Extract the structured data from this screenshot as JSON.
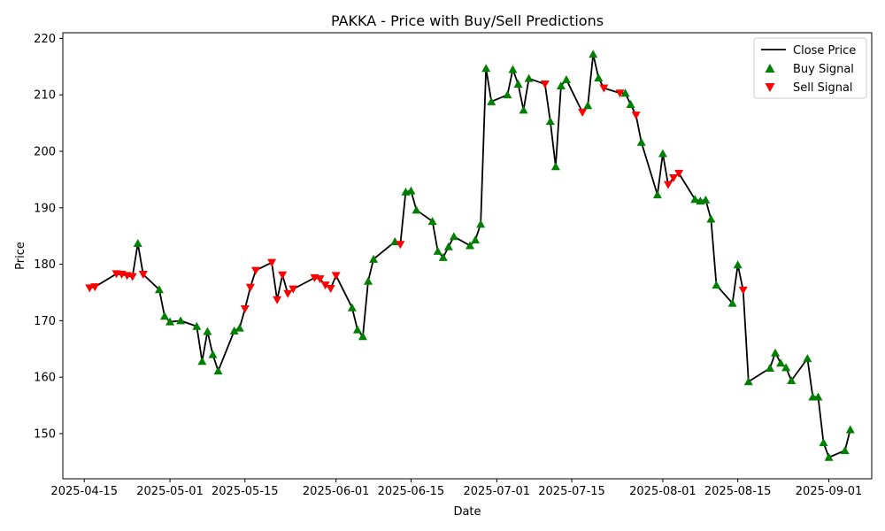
{
  "chart_data": {
    "type": "line",
    "title": "PAKKA - Price with Buy/Sell Predictions",
    "xlabel": "Date",
    "ylabel": "Price",
    "ylim": [
      142,
      221
    ],
    "xlim": [
      "2025-04-11",
      "2025-09-09"
    ],
    "x_ticks": [
      "2025-04-15",
      "2025-05-01",
      "2025-05-15",
      "2025-06-01",
      "2025-06-15",
      "2025-07-01",
      "2025-07-15",
      "2025-08-01",
      "2025-08-15",
      "2025-09-01"
    ],
    "y_ticks": [
      150,
      160,
      170,
      180,
      190,
      200,
      210,
      220
    ],
    "grid": false,
    "legend_position": "top-right",
    "legend": [
      "Close Price",
      "Buy Signal",
      "Sell Signal"
    ],
    "colors": {
      "close": "#000000",
      "buy": "#008000",
      "sell": "#ff0000"
    },
    "series": [
      {
        "name": "Close Price",
        "points": [
          [
            "2025-04-16",
            175.8
          ],
          [
            "2025-04-17",
            176.0
          ],
          [
            "2025-04-21",
            178.3
          ],
          [
            "2025-04-22",
            178.2
          ],
          [
            "2025-04-23",
            178.0
          ],
          [
            "2025-04-24",
            177.8
          ],
          [
            "2025-04-25",
            183.7
          ],
          [
            "2025-04-26",
            178.2
          ],
          [
            "2025-04-29",
            175.5
          ],
          [
            "2025-04-30",
            170.8
          ],
          [
            "2025-05-01",
            169.8
          ],
          [
            "2025-05-03",
            170.0
          ],
          [
            "2025-05-06",
            169.0
          ],
          [
            "2025-05-07",
            162.8
          ],
          [
            "2025-05-08",
            168.1
          ],
          [
            "2025-05-09",
            164.0
          ],
          [
            "2025-05-10",
            161.1
          ],
          [
            "2025-05-13",
            168.2
          ],
          [
            "2025-05-14",
            168.7
          ],
          [
            "2025-05-15",
            172.1
          ],
          [
            "2025-05-16",
            175.9
          ],
          [
            "2025-05-17",
            178.9
          ],
          [
            "2025-05-20",
            180.3
          ],
          [
            "2025-05-21",
            173.7
          ],
          [
            "2025-05-22",
            178.1
          ],
          [
            "2025-05-23",
            174.8
          ],
          [
            "2025-05-24",
            175.6
          ],
          [
            "2025-05-28",
            177.6
          ],
          [
            "2025-05-29",
            177.4
          ],
          [
            "2025-05-30",
            176.3
          ],
          [
            "2025-05-31",
            175.7
          ],
          [
            "2025-06-01",
            178.0
          ],
          [
            "2025-06-04",
            172.3
          ],
          [
            "2025-06-05",
            168.4
          ],
          [
            "2025-06-06",
            167.2
          ],
          [
            "2025-06-07",
            177.0
          ],
          [
            "2025-06-08",
            180.9
          ],
          [
            "2025-06-12",
            184.0
          ],
          [
            "2025-06-13",
            183.5
          ],
          [
            "2025-06-14",
            192.8
          ],
          [
            "2025-06-15",
            193.0
          ],
          [
            "2025-06-16",
            189.6
          ],
          [
            "2025-06-19",
            187.6
          ],
          [
            "2025-06-20",
            182.3
          ],
          [
            "2025-06-21",
            181.2
          ],
          [
            "2025-06-22",
            183.1
          ],
          [
            "2025-06-23",
            184.9
          ],
          [
            "2025-06-26",
            183.3
          ],
          [
            "2025-06-27",
            184.3
          ],
          [
            "2025-06-28",
            187.1
          ],
          [
            "2025-06-29",
            214.7
          ],
          [
            "2025-06-30",
            208.8
          ],
          [
            "2025-07-03",
            210.0
          ],
          [
            "2025-07-04",
            214.5
          ],
          [
            "2025-07-05",
            211.9
          ],
          [
            "2025-07-06",
            207.3
          ],
          [
            "2025-07-07",
            212.9
          ],
          [
            "2025-07-10",
            211.9
          ],
          [
            "2025-07-11",
            205.3
          ],
          [
            "2025-07-12",
            197.3
          ],
          [
            "2025-07-13",
            211.6
          ],
          [
            "2025-07-14",
            212.7
          ],
          [
            "2025-07-17",
            206.9
          ],
          [
            "2025-07-18",
            208.1
          ],
          [
            "2025-07-19",
            217.2
          ],
          [
            "2025-07-20",
            213.0
          ],
          [
            "2025-07-21",
            211.2
          ],
          [
            "2025-07-24",
            210.3
          ],
          [
            "2025-07-25",
            210.3
          ],
          [
            "2025-07-26",
            208.3
          ],
          [
            "2025-07-27",
            206.4
          ],
          [
            "2025-07-28",
            201.6
          ],
          [
            "2025-07-31",
            192.3
          ],
          [
            "2025-08-01",
            199.6
          ],
          [
            "2025-08-02",
            194.1
          ],
          [
            "2025-08-03",
            195.3
          ],
          [
            "2025-08-04",
            196.1
          ],
          [
            "2025-08-07",
            191.5
          ],
          [
            "2025-08-08",
            191.2
          ],
          [
            "2025-08-09",
            191.4
          ],
          [
            "2025-08-10",
            188.0
          ],
          [
            "2025-08-11",
            176.3
          ],
          [
            "2025-08-14",
            173.1
          ],
          [
            "2025-08-15",
            179.9
          ],
          [
            "2025-08-16",
            175.4
          ],
          [
            "2025-08-17",
            159.2
          ],
          [
            "2025-08-21",
            161.6
          ],
          [
            "2025-08-22",
            164.3
          ],
          [
            "2025-08-23",
            162.5
          ],
          [
            "2025-08-24",
            161.7
          ],
          [
            "2025-08-25",
            159.4
          ],
          [
            "2025-08-28",
            163.3
          ],
          [
            "2025-08-29",
            156.5
          ],
          [
            "2025-08-30",
            156.5
          ],
          [
            "2025-08-31",
            148.4
          ],
          [
            "2025-09-01",
            145.8
          ],
          [
            "2025-09-04",
            147.0
          ],
          [
            "2025-09-05",
            150.7
          ]
        ]
      },
      {
        "name": "Buy Signal",
        "points": [
          [
            "2025-04-25",
            183.7
          ],
          [
            "2025-04-29",
            175.5
          ],
          [
            "2025-04-30",
            170.8
          ],
          [
            "2025-05-01",
            169.8
          ],
          [
            "2025-05-03",
            170.0
          ],
          [
            "2025-05-06",
            169.0
          ],
          [
            "2025-05-07",
            162.8
          ],
          [
            "2025-05-08",
            168.1
          ],
          [
            "2025-05-09",
            164.0
          ],
          [
            "2025-05-10",
            161.1
          ],
          [
            "2025-05-13",
            168.2
          ],
          [
            "2025-05-14",
            168.7
          ],
          [
            "2025-06-04",
            172.3
          ],
          [
            "2025-06-05",
            168.4
          ],
          [
            "2025-06-06",
            167.2
          ],
          [
            "2025-06-07",
            177.0
          ],
          [
            "2025-06-08",
            180.9
          ],
          [
            "2025-06-12",
            184.0
          ],
          [
            "2025-06-14",
            192.8
          ],
          [
            "2025-06-15",
            193.0
          ],
          [
            "2025-06-16",
            189.6
          ],
          [
            "2025-06-19",
            187.6
          ],
          [
            "2025-06-20",
            182.3
          ],
          [
            "2025-06-21",
            181.2
          ],
          [
            "2025-06-22",
            183.1
          ],
          [
            "2025-06-23",
            184.9
          ],
          [
            "2025-06-26",
            183.3
          ],
          [
            "2025-06-27",
            184.3
          ],
          [
            "2025-06-28",
            187.1
          ],
          [
            "2025-06-29",
            214.7
          ],
          [
            "2025-06-30",
            208.8
          ],
          [
            "2025-07-03",
            210.0
          ],
          [
            "2025-07-04",
            214.5
          ],
          [
            "2025-07-05",
            211.9
          ],
          [
            "2025-07-06",
            207.3
          ],
          [
            "2025-07-07",
            212.9
          ],
          [
            "2025-07-11",
            205.3
          ],
          [
            "2025-07-12",
            197.3
          ],
          [
            "2025-07-13",
            211.6
          ],
          [
            "2025-07-14",
            212.7
          ],
          [
            "2025-07-18",
            208.1
          ],
          [
            "2025-07-19",
            217.2
          ],
          [
            "2025-07-20",
            213.0
          ],
          [
            "2025-07-25",
            210.3
          ],
          [
            "2025-07-26",
            208.3
          ],
          [
            "2025-07-28",
            201.6
          ],
          [
            "2025-07-31",
            192.3
          ],
          [
            "2025-08-01",
            199.6
          ],
          [
            "2025-08-07",
            191.5
          ],
          [
            "2025-08-08",
            191.2
          ],
          [
            "2025-08-09",
            191.4
          ],
          [
            "2025-08-10",
            188.0
          ],
          [
            "2025-08-11",
            176.3
          ],
          [
            "2025-08-14",
            173.1
          ],
          [
            "2025-08-15",
            179.9
          ],
          [
            "2025-08-17",
            159.2
          ],
          [
            "2025-08-21",
            161.6
          ],
          [
            "2025-08-22",
            164.3
          ],
          [
            "2025-08-23",
            162.5
          ],
          [
            "2025-08-24",
            161.7
          ],
          [
            "2025-08-25",
            159.4
          ],
          [
            "2025-08-28",
            163.3
          ],
          [
            "2025-08-29",
            156.5
          ],
          [
            "2025-08-30",
            156.5
          ],
          [
            "2025-08-31",
            148.4
          ],
          [
            "2025-09-01",
            145.8
          ],
          [
            "2025-09-04",
            147.0
          ],
          [
            "2025-09-05",
            150.7
          ]
        ]
      },
      {
        "name": "Sell Signal",
        "points": [
          [
            "2025-04-16",
            175.8
          ],
          [
            "2025-04-17",
            176.0
          ],
          [
            "2025-04-21",
            178.3
          ],
          [
            "2025-04-22",
            178.2
          ],
          [
            "2025-04-23",
            178.0
          ],
          [
            "2025-04-24",
            177.8
          ],
          [
            "2025-04-26",
            178.2
          ],
          [
            "2025-05-15",
            172.1
          ],
          [
            "2025-05-16",
            175.9
          ],
          [
            "2025-05-17",
            178.9
          ],
          [
            "2025-05-20",
            180.3
          ],
          [
            "2025-05-21",
            173.7
          ],
          [
            "2025-05-22",
            178.1
          ],
          [
            "2025-05-23",
            174.8
          ],
          [
            "2025-05-24",
            175.6
          ],
          [
            "2025-05-28",
            177.6
          ],
          [
            "2025-05-29",
            177.4
          ],
          [
            "2025-05-30",
            176.3
          ],
          [
            "2025-05-31",
            175.7
          ],
          [
            "2025-06-01",
            178.0
          ],
          [
            "2025-06-13",
            183.5
          ],
          [
            "2025-07-10",
            211.9
          ],
          [
            "2025-07-17",
            206.9
          ],
          [
            "2025-07-21",
            211.2
          ],
          [
            "2025-07-24",
            210.3
          ],
          [
            "2025-07-27",
            206.4
          ],
          [
            "2025-08-02",
            194.1
          ],
          [
            "2025-08-03",
            195.3
          ],
          [
            "2025-08-04",
            196.1
          ],
          [
            "2025-08-16",
            175.4
          ]
        ]
      }
    ]
  }
}
